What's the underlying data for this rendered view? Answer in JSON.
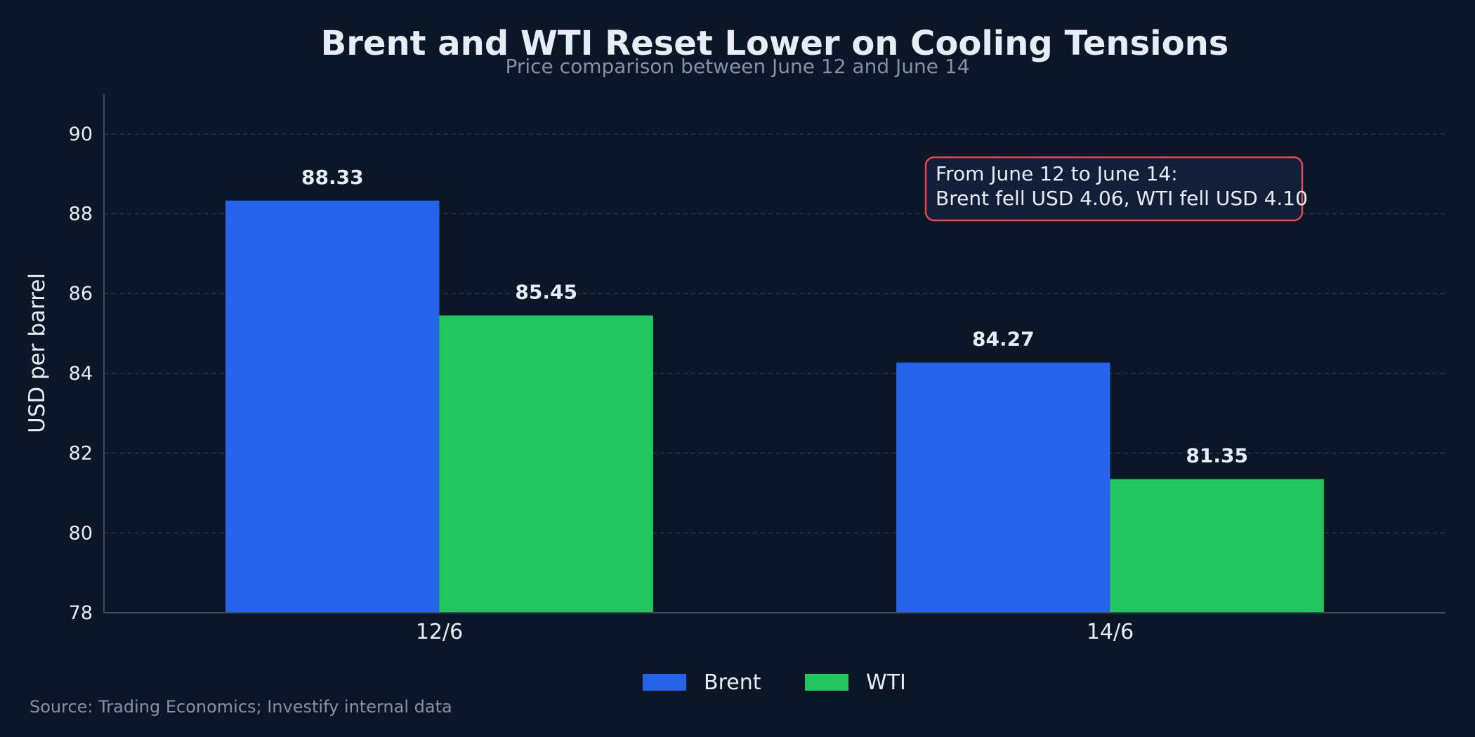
{
  "chart_data": {
    "type": "bar",
    "title": "Brent and WTI Reset Lower on Cooling Tensions",
    "subtitle": "Price comparison between June 12 and June 14",
    "xlabel": "",
    "ylabel": "USD per barrel",
    "categories": [
      "12/6",
      "14/6"
    ],
    "series": [
      {
        "name": "Brent",
        "values": [
          88.33,
          84.27
        ],
        "labels": [
          "88.33",
          "84.27"
        ],
        "color": "#2563eb"
      },
      {
        "name": "WTI",
        "values": [
          85.45,
          81.35
        ],
        "labels": [
          "85.45",
          "81.35"
        ],
        "color": "#22c55e"
      }
    ],
    "ylim": [
      78,
      91
    ],
    "yticks": [
      78,
      80,
      82,
      84,
      86,
      88,
      90
    ],
    "grid": true,
    "legend_position": "bottom-center",
    "annotation": {
      "lines": [
        "From June 12 to June 14:",
        "Brent fell USD 4.06, WTI fell USD 4.10"
      ],
      "border_color": "#e5484d"
    }
  },
  "source": "Source: Trading Economics; Investify internal data",
  "colors": {
    "background": "#0b1627",
    "grid": "#27354a",
    "axis": "#3d4b61",
    "text": "#e6edf6",
    "muted": "#8391a6"
  }
}
